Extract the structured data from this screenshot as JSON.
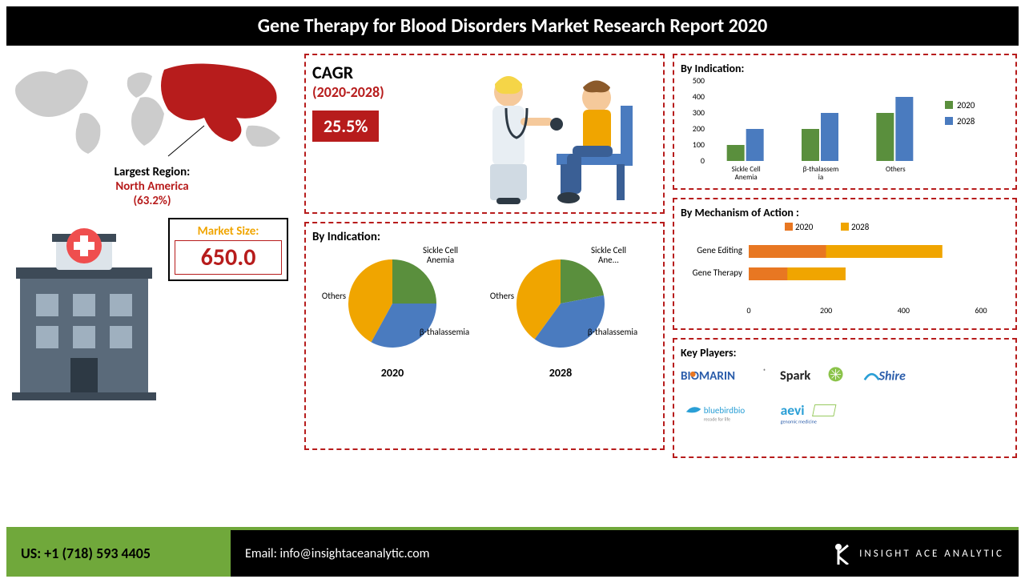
{
  "header": {
    "title": "Gene Therapy for Blood Disorders Market Research Report 2020"
  },
  "region": {
    "label": "Largest Region:",
    "name": "North America",
    "pct": "(63.2%)",
    "map_base": "#cccccc",
    "map_highlight": "#b71c1c"
  },
  "market_size": {
    "label": "Market Size:",
    "value": "650.0",
    "label_color": "#f0a500",
    "value_color": "#b71c1c"
  },
  "cagr": {
    "label": "CAGR",
    "range": "(2020-2028)",
    "value": "25.5%",
    "badge_bg": "#b71c1c"
  },
  "pie": {
    "title": "By Indication:",
    "years": [
      "2020",
      "2028"
    ],
    "segments": [
      "Sickle Cell Anemia",
      "β-thalassemia",
      "Others"
    ],
    "data_2020": [
      25,
      33,
      42
    ],
    "data_2028": [
      22,
      38,
      40
    ],
    "colors": [
      "#5a8f3d",
      "#4a7bbf",
      "#f0a500"
    ],
    "labels_2020": [
      "Sickle Cell Anemia",
      "β-thalassemia",
      "Others"
    ],
    "labels_2028": [
      "Sickle Cell Ane...",
      "β-thalassemia",
      "Others"
    ]
  },
  "bar": {
    "title": "By Indication:",
    "categories": [
      "Sickle Cell Anemia",
      "β-thalassemia",
      "Others"
    ],
    "series": [
      {
        "name": "2020",
        "color": "#5a8f3d",
        "values": [
          100,
          200,
          300
        ]
      },
      {
        "name": "2028",
        "color": "#4a7bbf",
        "values": [
          200,
          300,
          400
        ]
      }
    ],
    "ymax": 500,
    "ystep": 100
  },
  "hbar": {
    "title": "By Mechanism of Action :",
    "categories": [
      "Gene Editing",
      "Gene Therapy"
    ],
    "series": [
      {
        "name": "2020",
        "color": "#e87722",
        "values": [
          200,
          100
        ]
      },
      {
        "name": "2028",
        "color": "#f0a500",
        "values": [
          500,
          250
        ]
      }
    ],
    "xmax": 600,
    "xstep": 200
  },
  "players": {
    "title": "Key Players:",
    "list": [
      "BIOMARIN",
      "Spark",
      "Shire",
      "bluebirdbio",
      "aevi"
    ]
  },
  "footer": {
    "phone": "US: +1 (718) 593 4405",
    "email": "Email: info@insightaceanalytic.com",
    "brand": "INSIGHT ACE ANALYTIC"
  },
  "colors": {
    "green": "#70a83b",
    "red": "#b71c1c",
    "black": "#000"
  }
}
